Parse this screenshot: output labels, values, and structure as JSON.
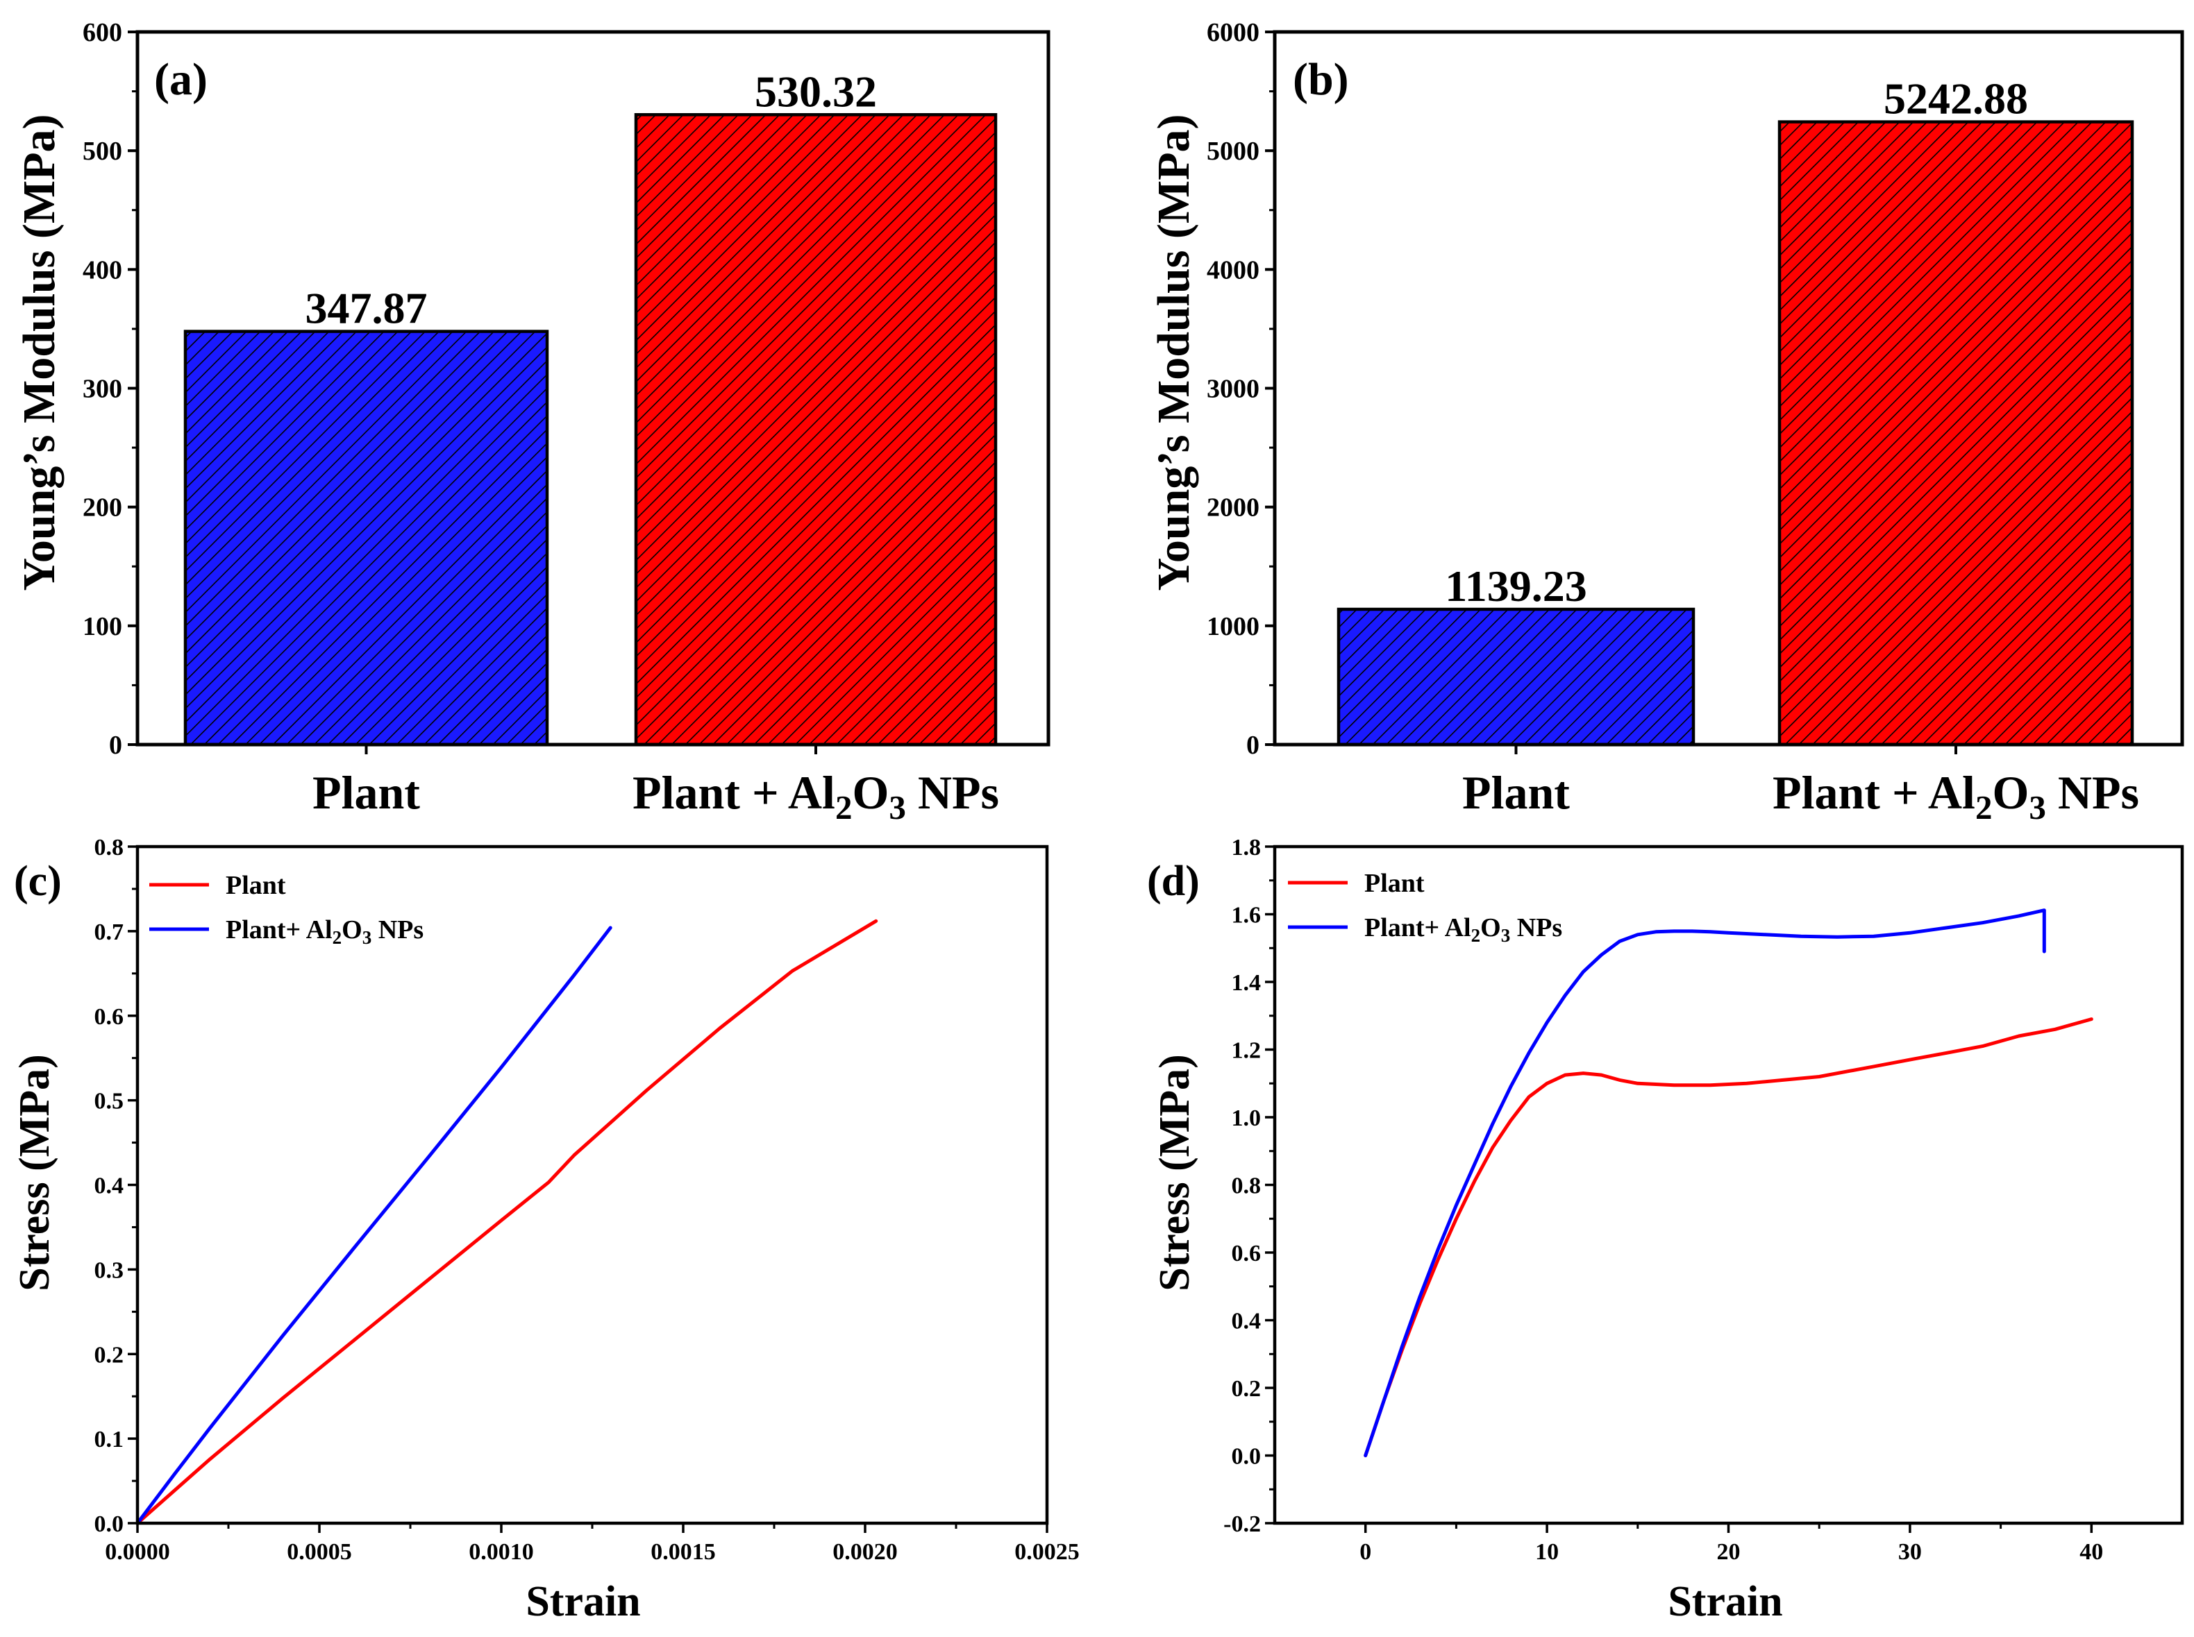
{
  "colors": {
    "plant": "#1a1aff",
    "plant_np": "#ff0000",
    "line_plant": "#ff0000",
    "line_plant_np": "#0000ff",
    "axis": "#000000"
  },
  "chart_data": [
    {
      "panel_label": "(a)",
      "type": "bar",
      "title": "",
      "xlabel": "",
      "ylabel": "Young’s Modulus (MPa)",
      "ylim": [
        0,
        600
      ],
      "yticks": [
        0,
        100,
        200,
        300,
        400,
        500,
        600
      ],
      "ytick_labels": [
        "0",
        "100",
        "200",
        "300",
        "400",
        "500",
        "600"
      ],
      "categories": [
        "Plant",
        "Plant + Al2O3 NPs"
      ],
      "category_labels": [
        {
          "pre": "Plant",
          "sub": "",
          "mid": "",
          "sub2": "",
          "post": ""
        },
        {
          "pre": "Plant + Al",
          "sub": "2",
          "mid": "O",
          "sub2": "3",
          "post": " NPs"
        }
      ],
      "values": [
        347.87,
        530.32
      ],
      "value_labels": [
        "347.87",
        "530.32"
      ],
      "fill": "hatched"
    },
    {
      "panel_label": "(b)",
      "type": "bar",
      "title": "",
      "xlabel": "",
      "ylabel": "Young’s Modulus (MPa)",
      "ylim": [
        0,
        6000
      ],
      "yticks": [
        0,
        1000,
        2000,
        3000,
        4000,
        5000,
        6000
      ],
      "ytick_labels": [
        "0",
        "1000",
        "2000",
        "3000",
        "4000",
        "5000",
        "6000"
      ],
      "categories": [
        "Plant",
        "Plant + Al2O3 NPs"
      ],
      "category_labels": [
        {
          "pre": "Plant",
          "sub": "",
          "mid": "",
          "sub2": "",
          "post": ""
        },
        {
          "pre": "Plant + Al",
          "sub": "2",
          "mid": "O",
          "sub2": "3",
          "post": " NPs"
        }
      ],
      "values": [
        1139.23,
        5242.88
      ],
      "value_labels": [
        "1139.23",
        "5242.88"
      ],
      "fill": "hatched"
    },
    {
      "panel_label": "(c)",
      "type": "line",
      "xlabel": "Strain",
      "ylabel": "Stress (MPa)",
      "xlim": [
        0,
        0.0025
      ],
      "ylim": [
        0,
        0.8
      ],
      "xticks": [
        0,
        0.0005,
        0.001,
        0.0015,
        0.002,
        0.0025
      ],
      "xtick_labels": [
        "0.0000",
        "0.0005",
        "0.0010",
        "0.0015",
        "0.0020",
        "0.0025"
      ],
      "yticks": [
        0,
        0.1,
        0.2,
        0.3,
        0.4,
        0.5,
        0.6,
        0.7,
        0.8
      ],
      "ytick_labels": [
        "0.0",
        "0.1",
        "0.2",
        "0.3",
        "0.4",
        "0.5",
        "0.6",
        "0.7",
        "0.8"
      ],
      "legend_position": "top-left",
      "series": [
        {
          "name": "Plant",
          "legend": {
            "pre": "Plant",
            "sub": "",
            "mid": "",
            "sub2": "",
            "post": ""
          },
          "color_key": "line_plant",
          "x": [
            0,
            0.0002,
            0.0004,
            0.0006,
            0.0008,
            0.001,
            0.00113,
            0.0012,
            0.0014,
            0.0016,
            0.0018,
            0.00203
          ],
          "y": [
            0,
            0.076,
            0.148,
            0.218,
            0.288,
            0.358,
            0.403,
            0.435,
            0.512,
            0.585,
            0.653,
            0.712
          ]
        },
        {
          "name": "Plant+ Al2O3 NPs",
          "legend": {
            "pre": "Plant+ Al",
            "sub": "2",
            "mid": "O",
            "sub2": "3",
            "post": " NPs"
          },
          "color_key": "line_plant_np",
          "x": [
            0,
            0.0001,
            0.0002,
            0.0004,
            0.0006,
            0.0008,
            0.001,
            0.0012,
            0.0013
          ],
          "y": [
            0,
            0.057,
            0.113,
            0.222,
            0.328,
            0.433,
            0.539,
            0.648,
            0.704
          ]
        }
      ]
    },
    {
      "panel_label": "(d)",
      "type": "line",
      "xlabel": "Strain",
      "ylabel": "Stress (MPa)",
      "xlim": [
        -5,
        45
      ],
      "ylim": [
        -0.2,
        1.8
      ],
      "xticks": [
        0,
        10,
        20,
        30,
        40
      ],
      "xtick_labels": [
        "0",
        "10",
        "20",
        "30",
        "40"
      ],
      "yticks": [
        -0.2,
        0,
        0.2,
        0.4,
        0.6,
        0.8,
        1.0,
        1.2,
        1.4,
        1.6,
        1.8
      ],
      "ytick_labels": [
        "-0.2",
        "0.0",
        "0.2",
        "0.4",
        "0.6",
        "0.8",
        "1.0",
        "1.2",
        "1.4",
        "1.6",
        "1.8"
      ],
      "legend_position": "top-left",
      "series": [
        {
          "name": "Plant",
          "legend": {
            "pre": "Plant",
            "sub": "",
            "mid": "",
            "sub2": "",
            "post": ""
          },
          "color_key": "line_plant",
          "x": [
            0,
            1,
            2,
            3,
            4,
            5,
            6,
            7,
            8,
            9,
            10,
            11,
            12,
            13,
            14,
            15,
            17,
            19,
            21,
            23,
            25,
            28,
            30,
            32,
            34,
            36,
            38,
            40
          ],
          "y": [
            0,
            0.16,
            0.31,
            0.45,
            0.58,
            0.7,
            0.81,
            0.91,
            0.99,
            1.06,
            1.1,
            1.125,
            1.13,
            1.125,
            1.11,
            1.1,
            1.095,
            1.095,
            1.1,
            1.11,
            1.12,
            1.15,
            1.17,
            1.19,
            1.21,
            1.24,
            1.26,
            1.29
          ]
        },
        {
          "name": "Plant+ Al2O3 NPs",
          "legend": {
            "pre": "Plant+ Al",
            "sub": "2",
            "mid": "O",
            "sub2": "3",
            "post": " NPs"
          },
          "color_key": "line_plant_np",
          "x": [
            0,
            1,
            2,
            3,
            4,
            5,
            6,
            7,
            8,
            9,
            10,
            11,
            12,
            13,
            14,
            15,
            16,
            17,
            18,
            19,
            20,
            22,
            24,
            26,
            28,
            30,
            32,
            34,
            36,
            37.4,
            37.4
          ],
          "y": [
            0,
            0.16,
            0.32,
            0.47,
            0.61,
            0.74,
            0.86,
            0.98,
            1.09,
            1.19,
            1.28,
            1.36,
            1.43,
            1.48,
            1.52,
            1.54,
            1.548,
            1.55,
            1.55,
            1.548,
            1.545,
            1.54,
            1.535,
            1.533,
            1.535,
            1.545,
            1.56,
            1.575,
            1.595,
            1.612,
            1.49
          ]
        }
      ]
    }
  ]
}
